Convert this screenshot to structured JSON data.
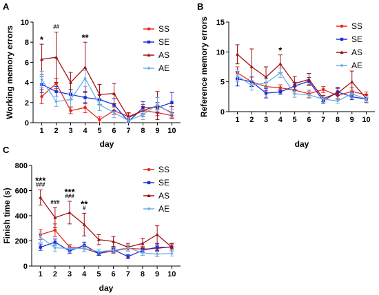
{
  "colors": {
    "SS": "#e8291c",
    "SE": "#1a2fd6",
    "AS": "#a01010",
    "AE": "#6aaee8"
  },
  "chart_data": [
    {
      "panel": "A",
      "type": "line",
      "ylabel": "Working memory errors",
      "xlabel": "day",
      "categories": [
        "1",
        "2",
        "3",
        "4",
        "5",
        "6",
        "7",
        "8",
        "9",
        "10"
      ],
      "ylim": [
        0,
        10
      ],
      "yticks": [
        0,
        2,
        4,
        6,
        8,
        10
      ],
      "series": [
        {
          "name": "SS",
          "values": [
            2.6,
            3.9,
            1.2,
            1.5,
            0.3,
            1.2,
            0.6,
            1.2,
            1.0,
            0.7
          ],
          "err": [
            0.7,
            0.5,
            0.3,
            0.5,
            0.3,
            0.4,
            0.3,
            0.4,
            0.3,
            0.3
          ]
        },
        {
          "name": "SE",
          "values": [
            3.8,
            3.1,
            2.8,
            2.5,
            2.3,
            1.8,
            0.1,
            1.5,
            1.5,
            2.0
          ],
          "err": [
            0.8,
            0.5,
            0.5,
            0.6,
            0.5,
            0.6,
            0.2,
            0.6,
            0.5,
            1.0
          ]
        },
        {
          "name": "AS",
          "values": [
            6.3,
            6.5,
            4.0,
            5.5,
            2.8,
            2.9,
            0.5,
            1.2,
            1.7,
            1.0
          ],
          "err": [
            1.5,
            2.5,
            1.0,
            2.5,
            1.0,
            1.0,
            0.5,
            0.6,
            1.4,
            0.6
          ]
        },
        {
          "name": "AE",
          "values": [
            4.3,
            2.1,
            2.3,
            4.4,
            1.8,
            1.0,
            0.2,
            0.8,
            1.8,
            0.9
          ],
          "err": [
            0.8,
            0.5,
            0.7,
            0.8,
            0.6,
            0.5,
            0.3,
            0.5,
            0.7,
            0.4
          ]
        }
      ],
      "annotations": [
        {
          "day": "1",
          "rows": [
            "*"
          ]
        },
        {
          "day": "2",
          "rows": [
            "##"
          ]
        },
        {
          "day": "4",
          "rows": [
            "**"
          ]
        }
      ]
    },
    {
      "panel": "B",
      "type": "line",
      "ylabel": "Reference memory errors",
      "xlabel": "day",
      "categories": [
        "1",
        "2",
        "3",
        "4",
        "5",
        "6",
        "7",
        "8",
        "9",
        "10"
      ],
      "ylim": [
        0,
        15
      ],
      "yticks": [
        0,
        5,
        10,
        15
      ],
      "series": [
        {
          "name": "SS",
          "values": [
            6.5,
            5.0,
            4.2,
            4.0,
            3.6,
            3.0,
            3.7,
            2.7,
            3.4,
            2.8
          ],
          "err": [
            1.0,
            0.8,
            0.7,
            0.5,
            0.6,
            0.6,
            0.5,
            0.6,
            0.6,
            0.5
          ]
        },
        {
          "name": "SE",
          "values": [
            5.5,
            5.0,
            3.1,
            3.3,
            4.3,
            5.1,
            1.8,
            3.3,
            2.5,
            2.1
          ],
          "err": [
            1.2,
            0.8,
            0.8,
            0.4,
            0.6,
            0.6,
            0.4,
            0.6,
            0.5,
            0.5
          ]
        },
        {
          "name": "AS",
          "values": [
            9.6,
            7.5,
            5.8,
            8.0,
            4.7,
            5.4,
            2.2,
            3.1,
            5.0,
            2.2
          ],
          "err": [
            1.6,
            3.0,
            1.7,
            1.5,
            1.2,
            1.0,
            0.5,
            1.0,
            1.8,
            0.7
          ]
        },
        {
          "name": "AE",
          "values": [
            6.0,
            4.4,
            4.8,
            6.5,
            3.0,
            2.8,
            2.1,
            1.8,
            3.0,
            2.1
          ],
          "err": [
            1.0,
            0.8,
            0.7,
            0.8,
            0.6,
            0.6,
            0.5,
            0.4,
            0.6,
            0.5
          ]
        }
      ],
      "annotations": [
        {
          "day": "4",
          "rows": [
            "*"
          ]
        }
      ]
    },
    {
      "panel": "C",
      "type": "line",
      "ylabel": "Finish time (s)",
      "xlabel": "day",
      "categories": [
        "1",
        "2",
        "3",
        "4",
        "5",
        "6",
        "7",
        "8",
        "9",
        "10"
      ],
      "ylim": [
        0,
        800
      ],
      "yticks": [
        0,
        200,
        400,
        600,
        800
      ],
      "series": [
        {
          "name": "SS",
          "values": [
            250,
            285,
            150,
            140,
            100,
            120,
            140,
            135,
            140,
            155
          ],
          "err": [
            40,
            50,
            20,
            25,
            15,
            20,
            20,
            20,
            20,
            20
          ]
        },
        {
          "name": "SE",
          "values": [
            150,
            190,
            120,
            165,
            100,
            130,
            75,
            125,
            150,
            150
          ],
          "err": [
            25,
            25,
            20,
            25,
            15,
            20,
            15,
            20,
            25,
            30
          ]
        },
        {
          "name": "AS",
          "values": [
            545,
            385,
            425,
            330,
            210,
            195,
            150,
            180,
            250,
            150
          ],
          "err": [
            60,
            80,
            90,
            90,
            40,
            40,
            30,
            40,
            70,
            30
          ]
        },
        {
          "name": "AE",
          "values": [
            230,
            145,
            140,
            140,
            115,
            125,
            145,
            105,
            95,
            100
          ],
          "err": [
            40,
            30,
            25,
            25,
            20,
            20,
            25,
            20,
            20,
            20
          ]
        }
      ],
      "annotations": [
        {
          "day": "1",
          "rows": [
            "***",
            "###"
          ]
        },
        {
          "day": "2",
          "rows": [
            "###"
          ]
        },
        {
          "day": "3",
          "rows": [
            "***",
            "###"
          ]
        },
        {
          "day": "4",
          "rows": [
            "**",
            "#"
          ]
        }
      ]
    }
  ]
}
